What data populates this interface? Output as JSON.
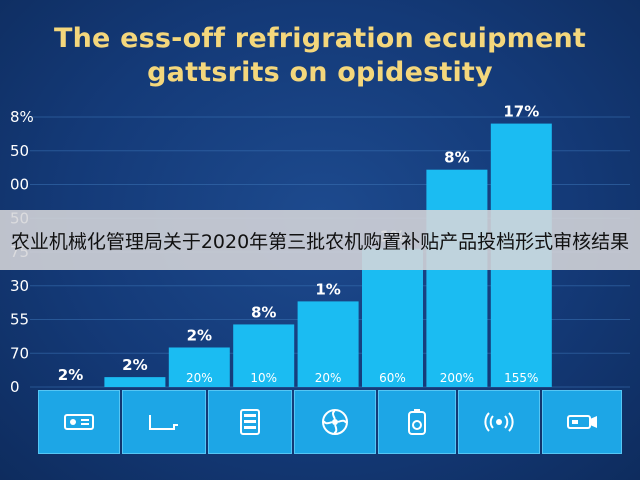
{
  "colors": {
    "background": "#143a78",
    "bar": "#1bbcf2",
    "title": "#f4d77c",
    "banner": "#d6d6da"
  },
  "chart_data": {
    "type": "bar",
    "title_lines": [
      "The ess-off refrigration ecuipment",
      "gattsrits on opidestity"
    ],
    "y_tick_labels": [
      "0",
      "70",
      "55",
      "30",
      "75",
      "50",
      "00",
      "50",
      "8%"
    ],
    "categories": [
      "",
      "",
      "",
      "",
      "",
      "",
      "",
      ""
    ],
    "values": [
      0,
      3,
      12,
      19,
      26,
      42,
      66,
      80
    ],
    "ylim": [
      0,
      82
    ],
    "top_labels": [
      "2%",
      "2%",
      "2%",
      "8%",
      "1%",
      "1%",
      "8%",
      "17%"
    ],
    "inner_labels": [
      "",
      "",
      "20%",
      "10%",
      "20%",
      "60%",
      "200%",
      "155%"
    ],
    "category_icons": [
      "projector-icon",
      "bracket-device-icon",
      "control-panel-icon",
      "fan-icon",
      "sensor-icon",
      "wireless-signal-icon",
      "camera-icon"
    ],
    "grid": true,
    "legend": "none"
  },
  "banner": {
    "text": "农业机械化管理局关于2020年第三批农机购置补贴产品投档形式审核结果"
  }
}
